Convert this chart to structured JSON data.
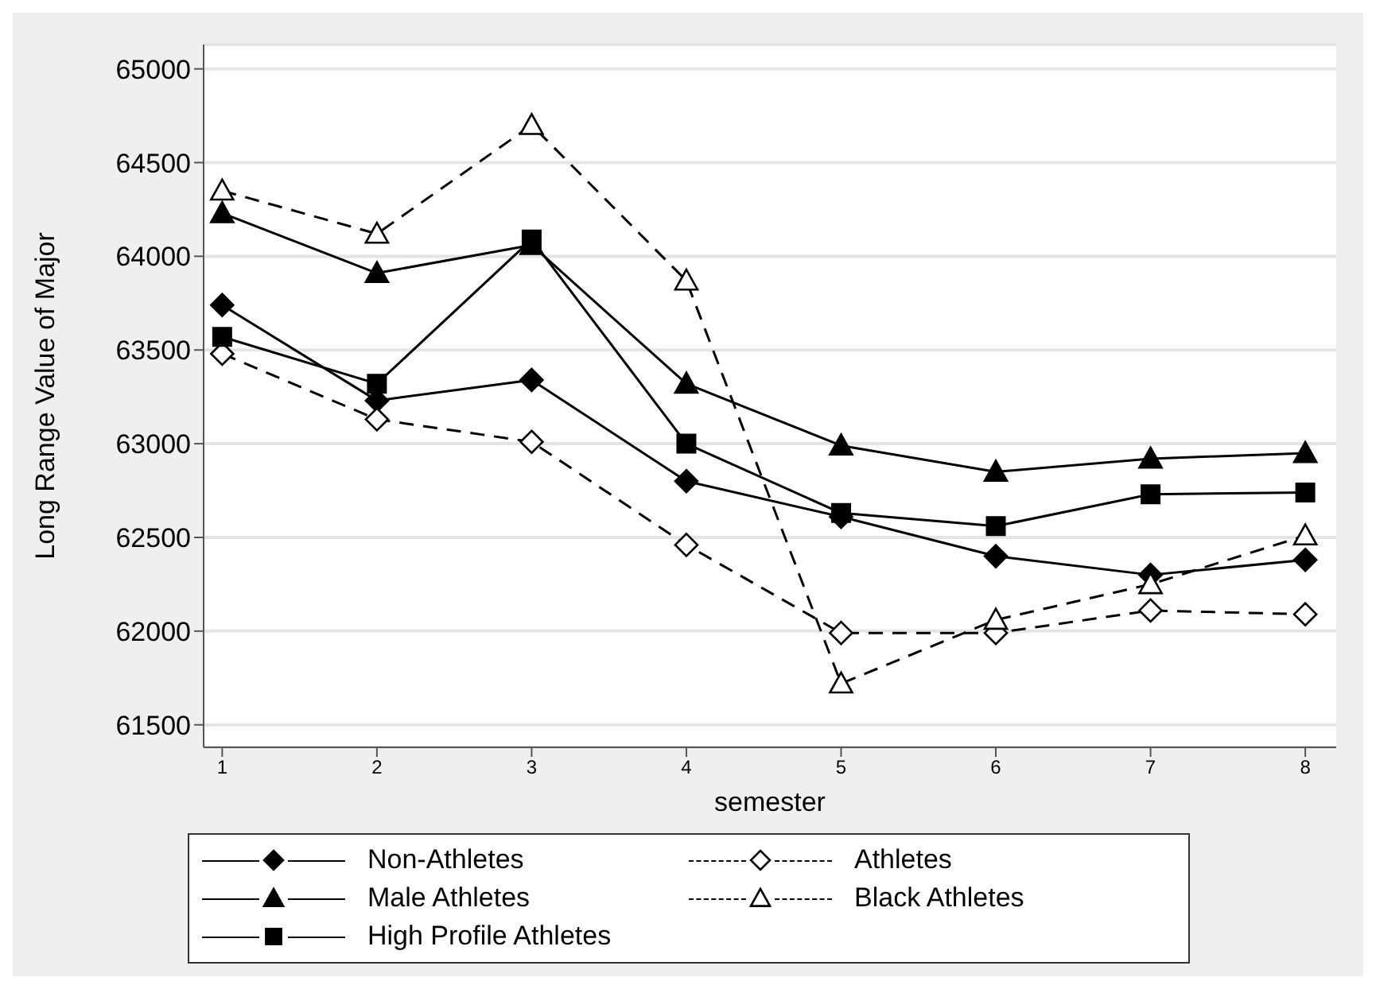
{
  "chart_data": {
    "type": "line",
    "xlabel": "semester",
    "ylabel": "Long Range Value of Major",
    "x": [
      1,
      2,
      3,
      4,
      5,
      6,
      7,
      8
    ],
    "xlim": [
      0.88,
      8.2
    ],
    "xticks": [
      1,
      2,
      3,
      4,
      5,
      6,
      7,
      8
    ],
    "ylim": [
      61380,
      65130
    ],
    "yticks": [
      61500,
      62000,
      62500,
      63000,
      63500,
      64000,
      64500,
      65000
    ],
    "grid": "y",
    "legend": "bottom",
    "series": [
      {
        "name": "Non-Athletes",
        "color": "#000000",
        "marker": "diamond",
        "line_style": "solid",
        "values": [
          63740,
          63230,
          63340,
          62800,
          62610,
          62400,
          62300,
          62380
        ]
      },
      {
        "name": "Athletes",
        "color": "#000000",
        "marker": "diamond",
        "line_style": "dashed",
        "values": [
          63480,
          63130,
          63010,
          62460,
          61990,
          61990,
          62110,
          62090
        ]
      },
      {
        "name": "Male Athletes",
        "color": "#000000",
        "marker": "triangle",
        "line_style": "solid",
        "values": [
          64230,
          63910,
          64060,
          63320,
          62990,
          62850,
          62920,
          62950
        ]
      },
      {
        "name": "Black Athletes",
        "color": "#000000",
        "marker": "triangle",
        "line_style": "dashed",
        "values": [
          64350,
          64120,
          64700,
          63870,
          61720,
          62060,
          62250,
          62510
        ]
      },
      {
        "name": "High Profile Athletes",
        "color": "#000000",
        "marker": "square",
        "line_style": "solid",
        "values": [
          63570,
          63320,
          64090,
          63000,
          62630,
          62560,
          62730,
          62740
        ]
      }
    ]
  }
}
